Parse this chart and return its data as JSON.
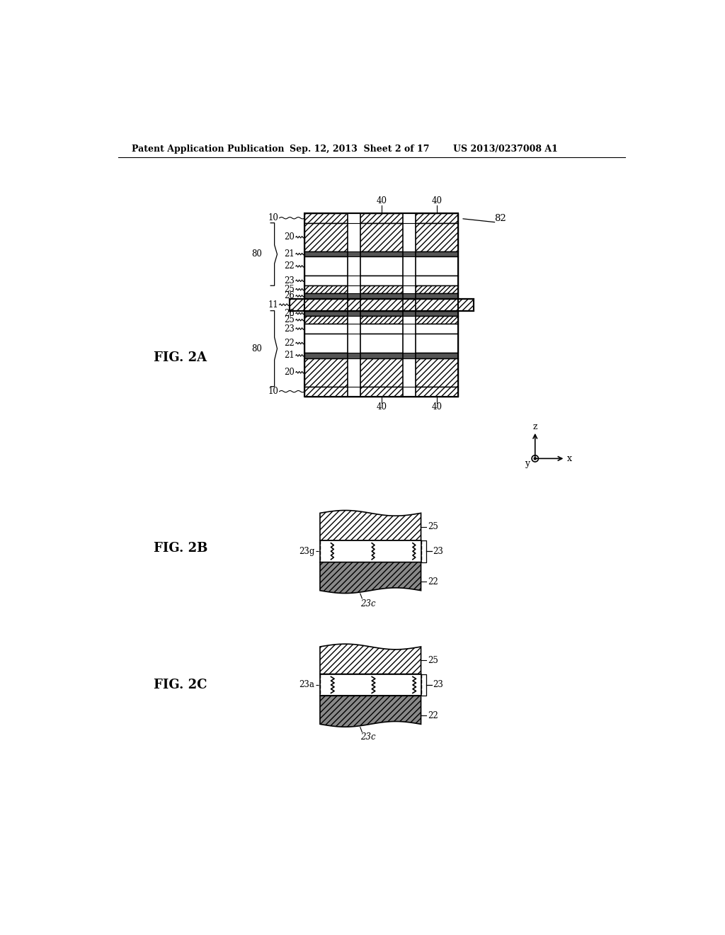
{
  "header_left": "Patent Application Publication",
  "header_center": "Sep. 12, 2013  Sheet 2 of 17",
  "header_right": "US 2013/0237008 A1",
  "fig2a_label": "FIG. 2A",
  "fig2b_label": "FIG. 2B",
  "fig2c_label": "FIG. 2C",
  "bg_color": "#ffffff"
}
